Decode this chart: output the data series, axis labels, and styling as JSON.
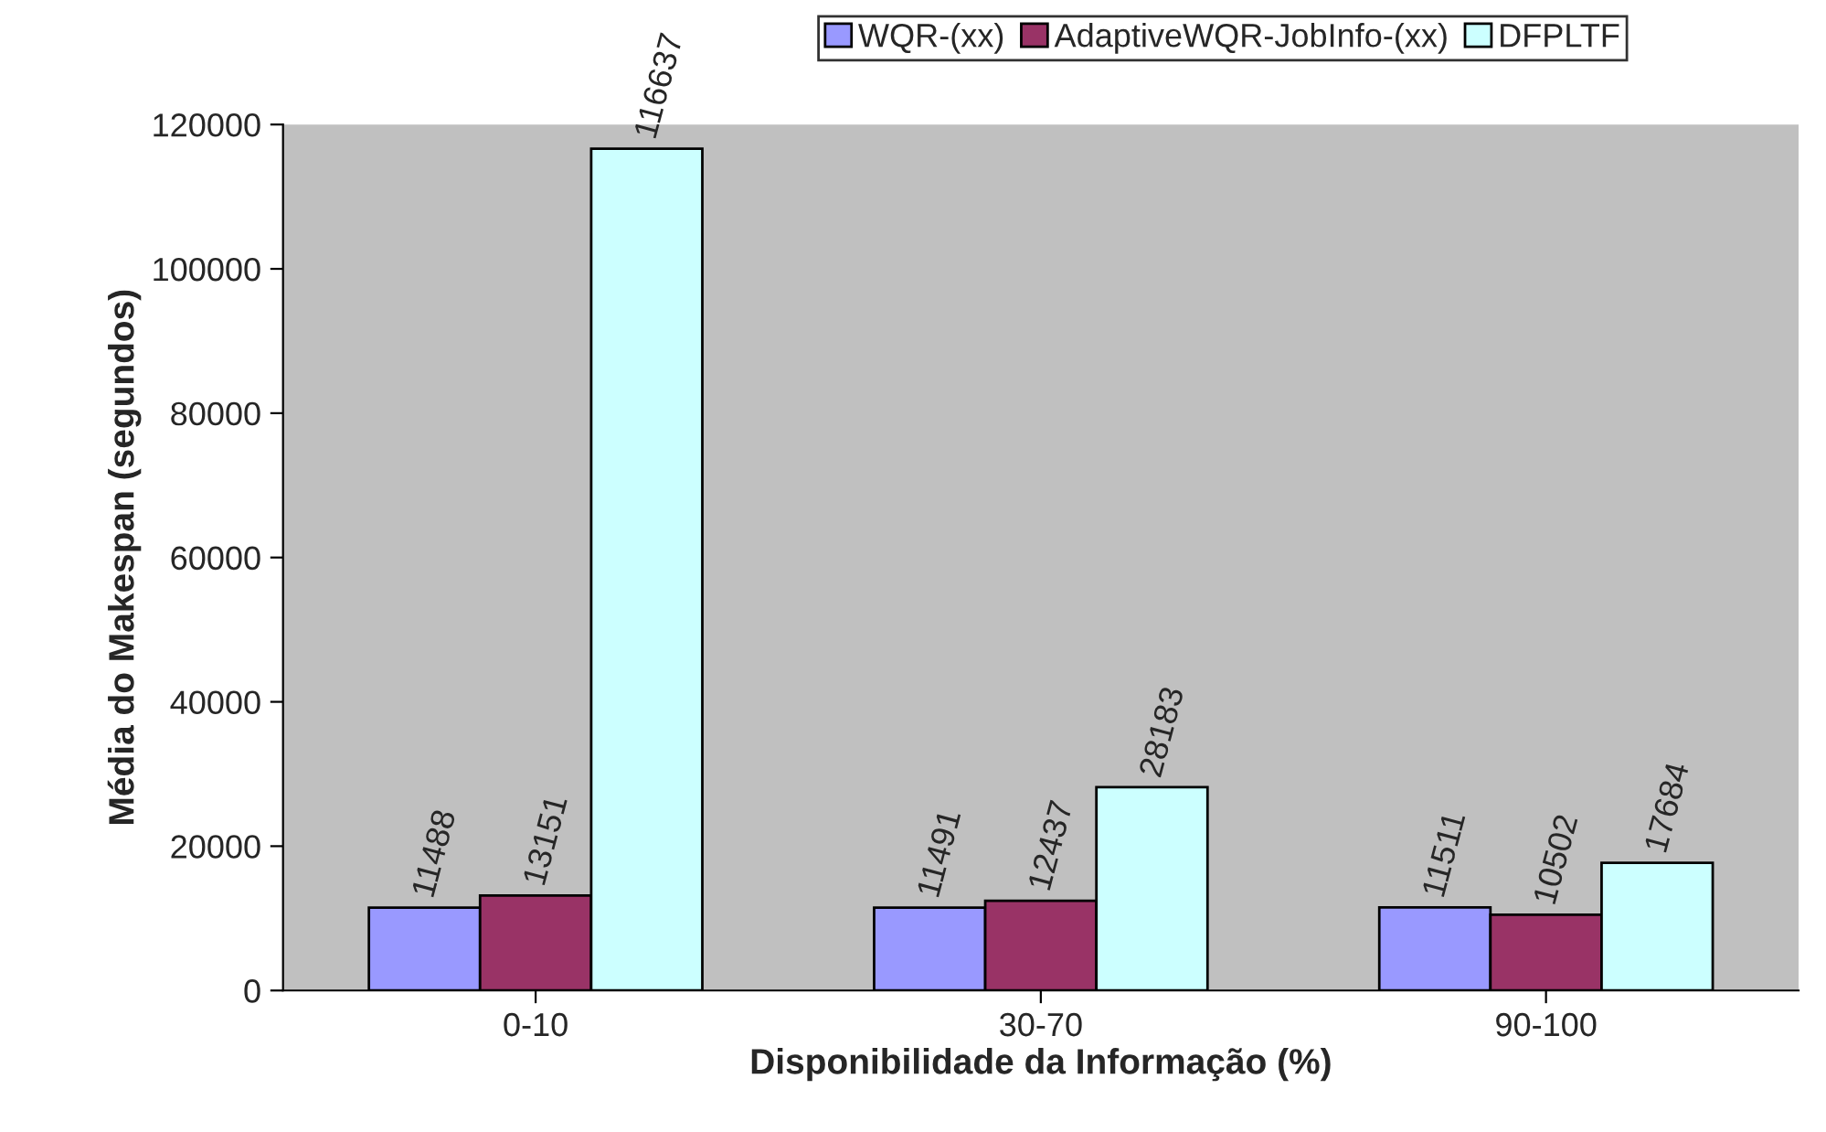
{
  "chart_data": {
    "type": "bar",
    "xlabel": "Disponibilidade da Informação (%)",
    "ylabel": "Média do Makespan (segundos)",
    "categories": [
      "0-10",
      "30-70",
      "90-100"
    ],
    "series": [
      {
        "name": "WQR-(xx)",
        "color": "#9999ff",
        "values": [
          11488,
          11491,
          11511
        ]
      },
      {
        "name": "AdaptiveWQR-JobInfo-(xx)",
        "color": "#993366",
        "values": [
          13151,
          12437,
          10502
        ]
      },
      {
        "name": "DFPLTF",
        "color": "#ccffff",
        "values": [
          116637,
          28183,
          17684
        ]
      }
    ],
    "ylim": [
      0,
      120000
    ],
    "yticks": [
      0,
      20000,
      40000,
      60000,
      80000,
      100000,
      120000
    ],
    "data_labels": true,
    "grid": false,
    "legend": "top"
  }
}
